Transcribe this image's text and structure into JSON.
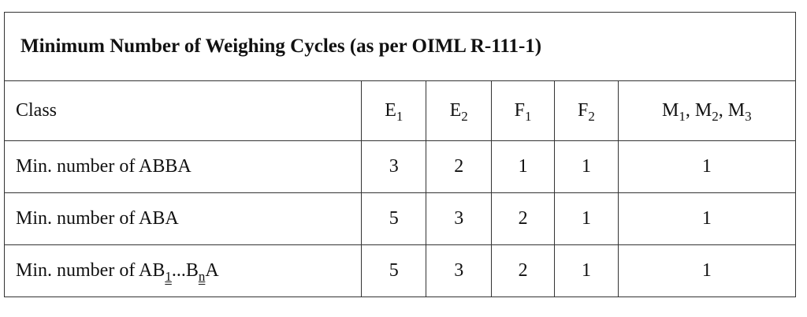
{
  "table": {
    "title": "Minimum Number of Weighing Cycles (as per OIML R-111-1)",
    "header": [
      [
        {
          "text": "Class"
        }
      ],
      [
        {
          "text": "E",
          "sub": "1"
        }
      ],
      [
        {
          "text": "E",
          "sub": "2"
        }
      ],
      [
        {
          "text": "F",
          "sub": "1"
        }
      ],
      [
        {
          "text": "F",
          "sub": "2"
        }
      ],
      [
        {
          "text": "M",
          "sub": "1"
        },
        {
          "text": ", M",
          "sub": "2"
        },
        {
          "text": ", M",
          "sub": "3"
        }
      ]
    ],
    "rows": [
      {
        "label": [
          {
            "text": "Min. number of ABBA"
          }
        ],
        "values": [
          3,
          2,
          1,
          1,
          1
        ]
      },
      {
        "label": [
          {
            "text": "Min. number of ABA"
          }
        ],
        "values": [
          5,
          3,
          2,
          1,
          1
        ]
      },
      {
        "label": [
          {
            "text": "Min. number of AB",
            "sub": "1",
            "underline": true
          },
          {
            "text": "...B",
            "sub": "n",
            "underline": true
          },
          {
            "text": "A"
          }
        ],
        "values": [
          5,
          3,
          2,
          1,
          1
        ]
      }
    ]
  }
}
